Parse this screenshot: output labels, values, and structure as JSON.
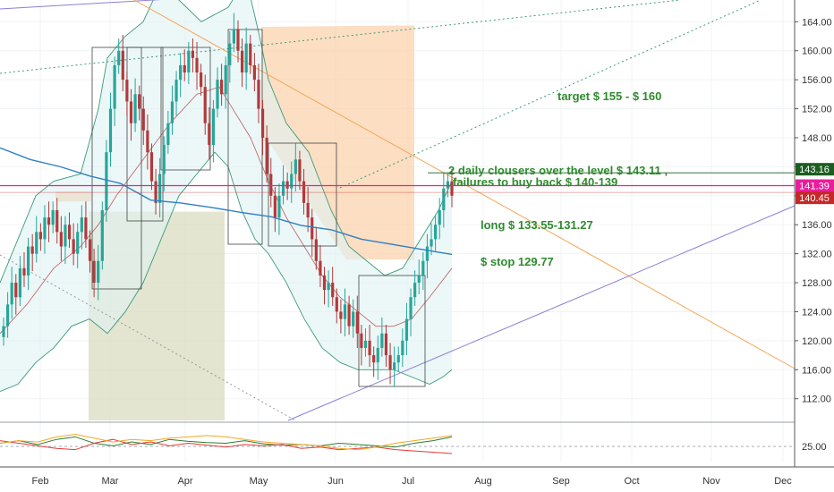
{
  "chart_data": {
    "type": "line",
    "title": "",
    "xlabel": "",
    "ylabel": "",
    "ylim": [
      109,
      167
    ],
    "x_ticks": [
      "Feb",
      "Mar",
      "Apr",
      "May",
      "Jun",
      "Jul",
      "Aug",
      "Sep",
      "Oct",
      "Nov",
      "Dec"
    ],
    "y_ticks": [
      "164.00",
      "160.00",
      "156.00",
      "152.00",
      "148.00",
      "144.00",
      "140.00",
      "136.00",
      "132.00",
      "128.00",
      "124.00",
      "120.00",
      "116.00",
      "112.00"
    ],
    "price_tags": [
      {
        "label": "143.16",
        "value": 143.16,
        "color": "#1b5e20"
      },
      {
        "label": "141.39",
        "value": 141.39,
        "color": "#e91e9b"
      },
      {
        "label": "140.45",
        "value": 140.45,
        "color": "#c62828"
      }
    ],
    "annotations": [
      {
        "text": "target $ 155 - $ 160"
      },
      {
        "text": "2 daily clousers over the level $ 143.11 ,"
      },
      {
        "text": "failures to buy back  $ 140-139"
      },
      {
        "text": "long $ 133.55-131.27"
      },
      {
        "text": "$ stop 129.77"
      }
    ],
    "close_series": {
      "name": "",
      "values": [
        122,
        125,
        128,
        126,
        130,
        129,
        133,
        132,
        135,
        134,
        137,
        136,
        138,
        135,
        133,
        136,
        134,
        132,
        135,
        137,
        134,
        131,
        128,
        131,
        138,
        146,
        152,
        158,
        160,
        156,
        153,
        150,
        154,
        152,
        149,
        146,
        142,
        139,
        143,
        147,
        150,
        153,
        156,
        158,
        157,
        160,
        159,
        157,
        155,
        150,
        147,
        152,
        156,
        154,
        158,
        161,
        163,
        160,
        157,
        161,
        158,
        156,
        152,
        148,
        143,
        140,
        137,
        140,
        142,
        141,
        143,
        145,
        142,
        139,
        137,
        134,
        131,
        129,
        127,
        128,
        126,
        124,
        123,
        125,
        122,
        124,
        121,
        119,
        120,
        118,
        117,
        119,
        121,
        118,
        116,
        117,
        118,
        120,
        123,
        126,
        128,
        129,
        131,
        133,
        134,
        136,
        138,
        141,
        142,
        140
      ]
    },
    "ma_series": {
      "name": "",
      "values": [
        146.6,
        145.0,
        144.0,
        142.7,
        141.7,
        139.4,
        139.0,
        138.4,
        137.7,
        137.1,
        135.9,
        135.3,
        134.0,
        133.3,
        132.6,
        131.9
      ]
    },
    "oscillator": {
      "y_ticks": [
        "25.00"
      ],
      "ylim": [
        0,
        60
      ],
      "series": [
        {
          "name": "",
          "color": "#2e7d32",
          "values": [
            30,
            34,
            28,
            36,
            40,
            30,
            26,
            32,
            28,
            36,
            33,
            31,
            30,
            34,
            29,
            27,
            28,
            26,
            30,
            28,
            26,
            24,
            30,
            34,
            40
          ]
        },
        {
          "name": "",
          "color": "#e53935",
          "values": [
            34,
            30,
            26,
            22,
            20,
            30,
            36,
            28,
            32,
            26,
            30,
            27,
            24,
            28,
            26,
            28,
            22,
            24,
            20,
            22,
            24,
            20,
            18,
            16,
            14
          ]
        },
        {
          "name": "",
          "color": "#f5a623",
          "values": [
            30,
            34,
            32,
            40,
            44,
            38,
            32,
            36,
            34,
            38,
            40,
            42,
            40,
            36,
            32,
            30,
            28,
            26,
            22,
            20,
            24,
            30,
            34,
            38,
            42
          ]
        }
      ]
    }
  }
}
